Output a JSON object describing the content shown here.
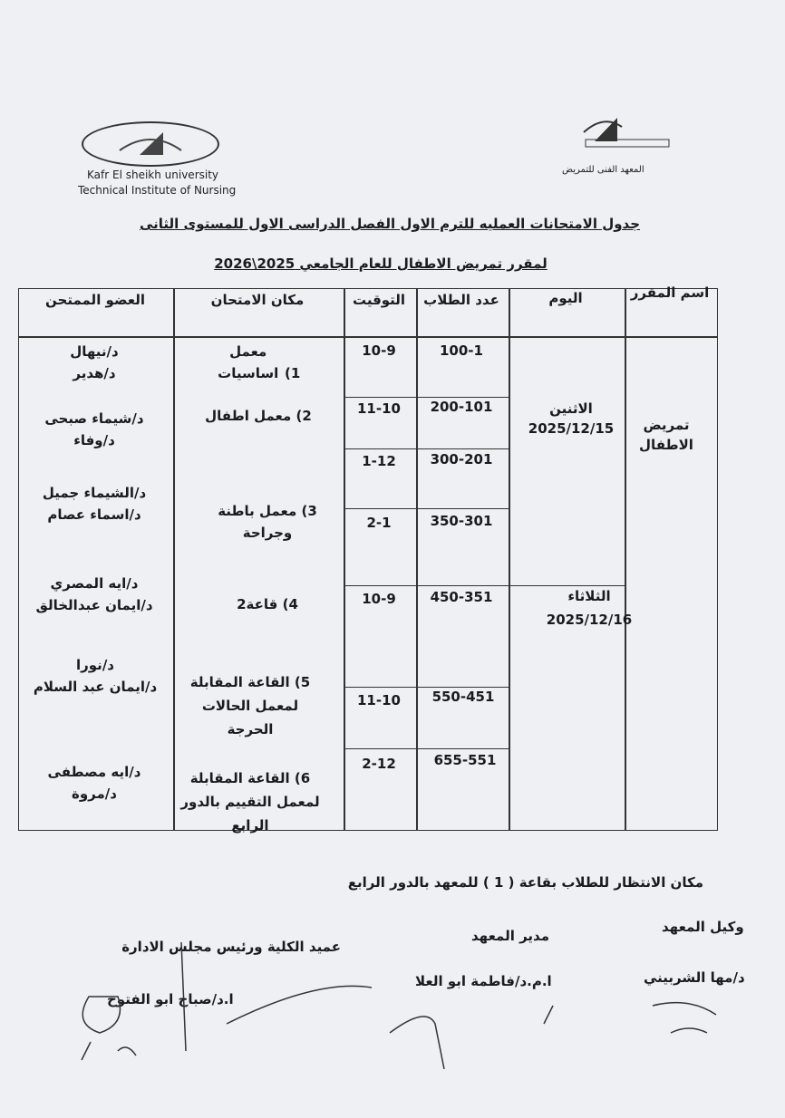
{
  "header": {
    "left_logo_text": "Technical Institute of Nursing",
    "university_en": "Kafr El sheikh university",
    "institute_en": "Technical Institute of Nursing",
    "institute_ar": "المعهد الفنى للتمريض",
    "title_line1": "جدول الامتحانات العمليه للترم الاول الفصل الدراسى الاول للمستوى الثانى",
    "title_line2": "لمقرر تمريض الاطفال للعام الجامعي 2025\\2026"
  },
  "table": {
    "columns": [
      "اسم المقرر",
      "اليوم",
      "عدد الطلاب",
      "التوقيت",
      "مكان الامتحان",
      "العضو الممتحن"
    ],
    "course": "تمريض الاطفال",
    "days": [
      {
        "day": "الاثنين",
        "date": "2025/12/15"
      },
      {
        "day": "الثلاثاء",
        "date": "2025/12/16"
      }
    ],
    "rows": [
      {
        "students": "100-1",
        "time": "10-9"
      },
      {
        "students": "200-101",
        "time": "11-10"
      },
      {
        "students": "300-201",
        "time": "1-12"
      },
      {
        "students": "350-301",
        "time": "2-1"
      },
      {
        "students": "450-351",
        "time": "10-9"
      },
      {
        "students": "550-451",
        "time": "11-10"
      },
      {
        "students": "655-551",
        "time": "2-12"
      }
    ],
    "places": [
      {
        "num": "1)",
        "name": "معمل اساسيات"
      },
      {
        "num": "2)",
        "name": "معمل اطفال"
      },
      {
        "num": "3)",
        "name": "معمل باطنة وجراحة"
      },
      {
        "num": "4)",
        "name": "قاعة2"
      },
      {
        "num": "5)",
        "name": "القاعة المقابلة لمعمل الحالات الحرجة"
      },
      {
        "num": "6)",
        "name": "القاعة المقابلة لمعمل التقييم بالدور الرابع"
      }
    ],
    "examiners": [
      [
        "د/نيهال",
        "د/هدير"
      ],
      [
        "د/شيماء صبحى",
        "د/وفاء"
      ],
      [
        "د/الشيماء جميل",
        "د/اسماء عصام"
      ],
      [
        "د/ايه المصري",
        "د/ايمان عبدالخالق"
      ],
      [
        "د/نورا",
        "د/ايمان عبد السلام"
      ],
      [
        "د/ايه مصطفى",
        "د/مروة"
      ]
    ]
  },
  "footer": {
    "waiting_note": "مكان الانتظار للطلاب بقاعة ( 1 ) للمعهد بالدور الرابع",
    "signatories": [
      {
        "role": "وكيل المعهد",
        "name": "د/مها الشربيني"
      },
      {
        "role": "مدير المعهد",
        "name": "ا.م.د/فاطمة ابو العلا"
      },
      {
        "role": "عميد الكلية ورئيس مجلس الادارة",
        "name": "ا.د/صباح ابو الفتوح"
      }
    ]
  }
}
